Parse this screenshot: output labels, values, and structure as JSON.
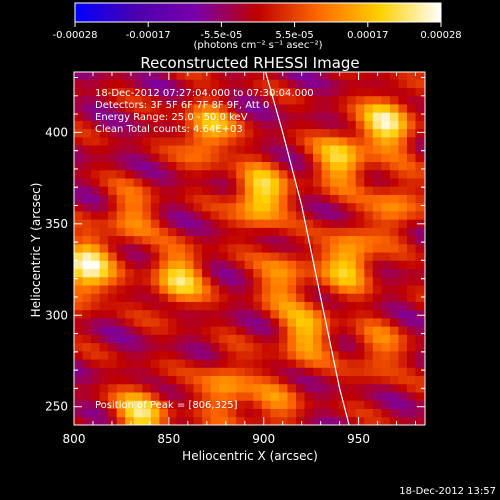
{
  "colorbar": {
    "ticks": [
      "-0.00028",
      "-0.00017",
      "-5.5e-05",
      "5.5e-05",
      "0.00017",
      "0.00028"
    ],
    "units": "(photons cm⁻² s⁻¹ asec⁻²)"
  },
  "chart_data": {
    "type": "heatmap",
    "title": "Reconstructed RHESSI Image",
    "xlabel": "Heliocentric X (arcsec)",
    "ylabel": "Heliocentric Y (arcsec)",
    "xlim": [
      800,
      985
    ],
    "ylim": [
      240,
      433
    ],
    "x_ticks": [
      "800",
      "850",
      "900",
      "950"
    ],
    "y_ticks": [
      "250",
      "300",
      "350",
      "400"
    ],
    "clim": [
      -0.00028,
      0.00028
    ],
    "colormap": [
      "#0000ff",
      "#4b00b0",
      "#7a00a8",
      "#c00000",
      "#ff6a00",
      "#ffd000",
      "#ffffff"
    ],
    "annotations": [
      "18-Dec-2012 07:27:04.000 to 07:30:04.000",
      "Detectors: 3F 5F 6F 7F 8F 9F, Att 0",
      "Energy Range: 25.0 - 50.0 keV",
      "Clean    Total counts: 4.64E+03"
    ],
    "peak_label": "Position of Peak = [806,325]",
    "peak": [
      806,
      325
    ],
    "grid": false,
    "limb_curve": {
      "x": [
        901,
        910,
        920,
        930,
        940,
        945
      ],
      "y": [
        433,
        400,
        360,
        310,
        260,
        240
      ]
    },
    "sources": [
      {
        "x": 806,
        "y": 325,
        "v": 0.00028
      },
      {
        "x": 898,
        "y": 365,
        "v": 0.00025
      },
      {
        "x": 965,
        "y": 405,
        "v": 0.00024
      },
      {
        "x": 945,
        "y": 330,
        "v": 0.00022
      },
      {
        "x": 940,
        "y": 385,
        "v": 0.0002
      },
      {
        "x": 870,
        "y": 400,
        "v": 0.0002
      },
      {
        "x": 855,
        "y": 320,
        "v": 0.00021
      },
      {
        "x": 835,
        "y": 245,
        "v": 0.00022
      },
      {
        "x": 922,
        "y": 290,
        "v": 0.00018
      },
      {
        "x": 880,
        "y": 260,
        "v": 0.00016
      },
      {
        "x": 910,
        "y": 320,
        "v": 0.00015
      },
      {
        "x": 970,
        "y": 360,
        "v": 0.00014
      },
      {
        "x": 960,
        "y": 280,
        "v": 0.00012
      },
      {
        "x": 830,
        "y": 355,
        "v": 0.00013
      },
      {
        "x": 905,
        "y": 250,
        "v": 0.00011
      }
    ]
  },
  "footer": {
    "timestamp": "18-Dec-2012 13:57"
  }
}
